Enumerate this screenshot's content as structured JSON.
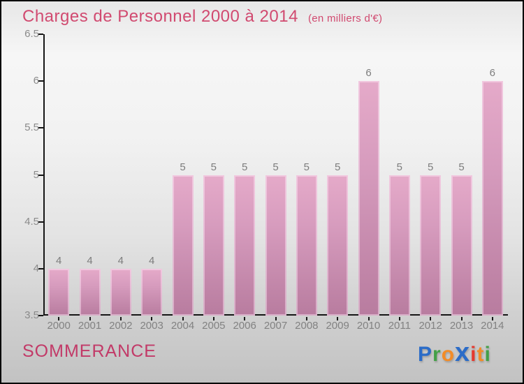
{
  "header": {
    "title": "Charges de Personnel 2000 à 2014",
    "subtitle": "(en milliers d'€)"
  },
  "footer": {
    "entity": "SOMMERANCE",
    "logo_name": "Proxiti",
    "logo_letters": [
      {
        "ch": "P",
        "color": "#2b6cc8",
        "big": false
      },
      {
        "ch": "r",
        "color": "#43a047",
        "big": false
      },
      {
        "ch": "o",
        "color": "#f28c28",
        "big": false
      },
      {
        "ch": "x",
        "color": "#2b6cc8",
        "big": true
      },
      {
        "ch": "i",
        "color": "#e5392e",
        "big": false
      },
      {
        "ch": "t",
        "color": "#f28c28",
        "big": false
      },
      {
        "ch": "i",
        "color": "#43a047",
        "big": false
      }
    ]
  },
  "colors": {
    "title": "#d14a70",
    "entity": "#c23a68",
    "axis": "#161616",
    "tick_label": "#8a8a8a",
    "bar_top": "#e5aac9",
    "bar_bottom": "#b87c9f",
    "value_label": "#7d7d7d"
  },
  "chart_data": {
    "type": "bar",
    "title": "Charges de Personnel 2000 à 2014",
    "subtitle": "(en milliers d'€)",
    "categories": [
      "2000",
      "2001",
      "2002",
      "2003",
      "2004",
      "2005",
      "2006",
      "2007",
      "2008",
      "2009",
      "2010",
      "2011",
      "2012",
      "2013",
      "2014"
    ],
    "values": [
      4,
      4,
      4,
      4,
      5,
      5,
      5,
      5,
      5,
      5,
      6,
      5,
      5,
      5,
      6
    ],
    "xlabel": "",
    "ylabel": "",
    "ylim": [
      3.5,
      6.5
    ],
    "yticks": [
      3.5,
      4,
      4.5,
      5,
      5.5,
      6,
      6.5
    ],
    "grid": false,
    "legend": false,
    "value_labels": true
  }
}
